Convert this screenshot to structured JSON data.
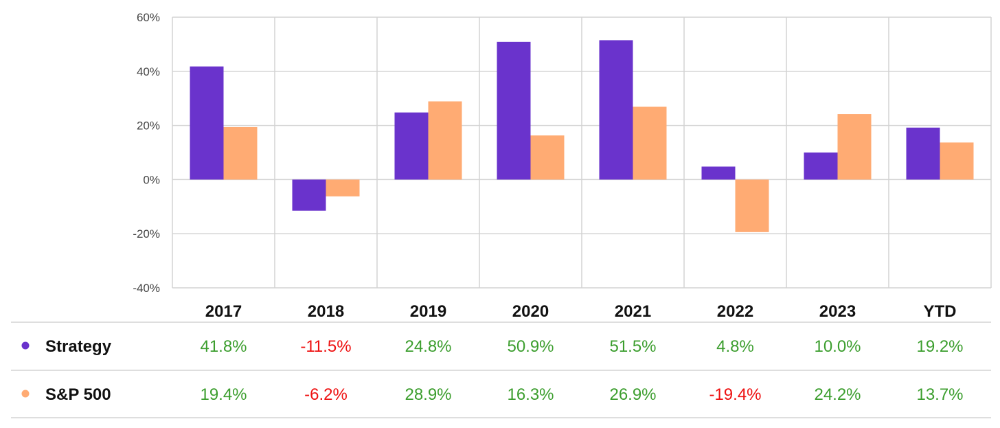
{
  "chart_data": {
    "type": "bar",
    "categories": [
      "2017",
      "2018",
      "2019",
      "2020",
      "2021",
      "2022",
      "2023",
      "YTD"
    ],
    "series": [
      {
        "name": "Strategy",
        "color": "#6a33cc",
        "values": [
          41.8,
          -11.5,
          24.8,
          50.9,
          51.5,
          4.8,
          10.0,
          19.2
        ],
        "labels": [
          "41.8%",
          "-11.5%",
          "24.8%",
          "50.9%",
          "51.5%",
          "4.8%",
          "10.0%",
          "19.2%"
        ]
      },
      {
        "name": "S&P 500",
        "color": "#ffab73",
        "values": [
          19.4,
          -6.2,
          28.9,
          16.3,
          26.9,
          -19.4,
          24.2,
          13.7
        ],
        "labels": [
          "19.4%",
          "-6.2%",
          "28.9%",
          "16.3%",
          "26.9%",
          "-19.4%",
          "24.2%",
          "13.7%"
        ]
      }
    ],
    "yticks": [
      "60%",
      "40%",
      "20%",
      "0%",
      "-20%",
      "-40%"
    ],
    "ytick_values": [
      60,
      40,
      20,
      0,
      -20,
      -40
    ],
    "ylim": [
      -40,
      60
    ],
    "grid": true,
    "legend": "table-below",
    "positive_color": "#3c9e2e",
    "negative_color": "#ee1111"
  }
}
